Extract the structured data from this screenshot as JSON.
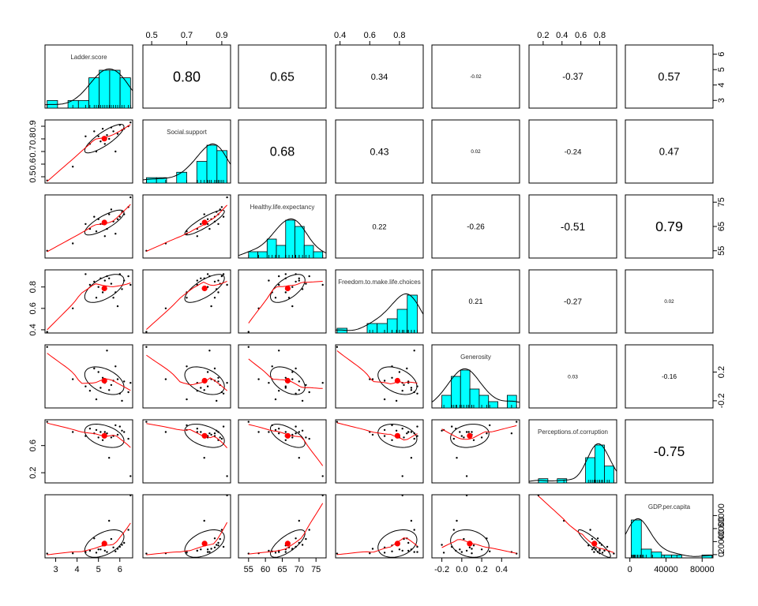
{
  "chart_data": {
    "type": "scatter-matrix",
    "variables": [
      "Ladder.score",
      "Social.support",
      "Healthy.life.expectancy",
      "Freedom.to.make.life.choices",
      "Generosity",
      "Perceptions.of.corruption",
      "GDP.per.capita"
    ],
    "ranges": [
      [
        2.5,
        6.6
      ],
      [
        0.45,
        0.95
      ],
      [
        52,
        78
      ],
      [
        0.37,
        0.96
      ],
      [
        -0.3,
        0.58
      ],
      [
        0.05,
        0.98
      ],
      [
        -5000,
        92000
      ]
    ],
    "ticks": [
      {
        "values": [
          3,
          4,
          5,
          6
        ],
        "labels": [
          "3",
          "4",
          "5",
          "6"
        ]
      },
      {
        "values": [
          0.5,
          0.7,
          0.9
        ],
        "labels": [
          "0.5",
          "0.7",
          "0.9"
        ]
      },
      {
        "values": [
          55,
          60,
          65,
          70,
          75
        ],
        "labels": [
          "55",
          "60",
          "65",
          "70",
          "75"
        ]
      },
      {
        "values": [
          0.4,
          0.6,
          0.8
        ],
        "labels": [
          "0.4",
          "0.6",
          "0.8"
        ]
      },
      {
        "values": [
          -0.2,
          0.0,
          0.2,
          0.4
        ],
        "labels": [
          "-0.2",
          "0.0",
          "0.2",
          "0.4"
        ]
      },
      {
        "values": [
          0.2,
          0.4,
          0.6,
          0.8
        ],
        "labels": [
          "0.2",
          "0.4",
          "0.6",
          "0.8"
        ]
      },
      {
        "values": [
          0,
          40000,
          80000
        ],
        "labels": [
          "0",
          "40000",
          "80000"
        ]
      }
    ],
    "side_ticks": [
      {
        "values": [
          3,
          4,
          5,
          6
        ],
        "labels": [
          "3",
          "4",
          "5",
          "6"
        ]
      },
      {
        "values": [
          0.5,
          0.6,
          0.7,
          0.8,
          0.9
        ],
        "labels": [
          "0.5",
          "0.6",
          "0.7",
          "0.8",
          "0.9"
        ]
      },
      {
        "values": [
          55,
          65,
          75
        ],
        "labels": [
          "55",
          "65",
          "75"
        ]
      },
      {
        "values": [
          0.4,
          0.6,
          0.8
        ],
        "labels": [
          "0.4",
          "0.6",
          "0.8"
        ]
      },
      {
        "values": [
          -0.2,
          0.2
        ],
        "labels": [
          "-0.2",
          "0.2"
        ]
      },
      {
        "values": [
          0.2,
          0.6
        ],
        "labels": [
          "0.2",
          "0.6"
        ]
      },
      {
        "values": [
          0,
          20000,
          40000,
          60000
        ],
        "labels": [
          "0",
          "20000",
          "40000",
          "60000"
        ]
      }
    ],
    "correlations": [
      {
        "row": 0,
        "col": 1,
        "value": "0.80"
      },
      {
        "row": 0,
        "col": 2,
        "value": "0.65"
      },
      {
        "row": 0,
        "col": 3,
        "value": "0.34"
      },
      {
        "row": 0,
        "col": 4,
        "value": "-0.02"
      },
      {
        "row": 0,
        "col": 5,
        "value": "-0.37"
      },
      {
        "row": 0,
        "col": 6,
        "value": "0.57"
      },
      {
        "row": 1,
        "col": 2,
        "value": "0.68"
      },
      {
        "row": 1,
        "col": 3,
        "value": "0.43"
      },
      {
        "row": 1,
        "col": 4,
        "value": "0.02"
      },
      {
        "row": 1,
        "col": 5,
        "value": "-0.24"
      },
      {
        "row": 1,
        "col": 6,
        "value": "0.47"
      },
      {
        "row": 2,
        "col": 3,
        "value": "0.22"
      },
      {
        "row": 2,
        "col": 4,
        "value": "-0.26"
      },
      {
        "row": 2,
        "col": 5,
        "value": "-0.51"
      },
      {
        "row": 2,
        "col": 6,
        "value": "0.79"
      },
      {
        "row": 3,
        "col": 4,
        "value": "0.21"
      },
      {
        "row": 3,
        "col": 5,
        "value": "-0.27"
      },
      {
        "row": 3,
        "col": 6,
        "value": "0.02"
      },
      {
        "row": 4,
        "col": 5,
        "value": "0.03"
      },
      {
        "row": 4,
        "col": 6,
        "value": "-0.16"
      },
      {
        "row": 5,
        "col": 6,
        "value": "-0.75"
      }
    ],
    "observations": [
      [
        6.5,
        0.93,
        77,
        0.82,
        0.05,
        0.15,
        91000
      ],
      [
        6.4,
        0.9,
        73,
        0.9,
        -0.08,
        0.7,
        38000
      ],
      [
        6.2,
        0.88,
        70,
        0.86,
        0.07,
        0.8,
        18000
      ],
      [
        6.1,
        0.87,
        71,
        0.78,
        -0.2,
        0.82,
        15000
      ],
      [
        6.0,
        0.91,
        69,
        0.92,
        -0.1,
        0.88,
        12000
      ],
      [
        5.9,
        0.84,
        68,
        0.62,
        0.1,
        0.76,
        9000
      ],
      [
        5.8,
        0.7,
        62,
        0.75,
        0.28,
        0.9,
        5000
      ],
      [
        5.7,
        0.86,
        67,
        0.7,
        0.08,
        0.74,
        11000
      ],
      [
        5.6,
        0.89,
        72,
        0.83,
        0.02,
        0.72,
        24000
      ],
      [
        5.5,
        0.8,
        70,
        0.88,
        -0.05,
        0.42,
        52000
      ],
      [
        5.4,
        0.83,
        64,
        0.9,
        0.5,
        0.78,
        4000
      ],
      [
        5.3,
        0.76,
        61,
        0.86,
        0.05,
        0.8,
        6000
      ],
      [
        5.2,
        0.88,
        66,
        0.75,
        0.12,
        0.68,
        14000
      ],
      [
        5.1,
        0.78,
        66,
        0.88,
        -0.02,
        0.8,
        8000
      ],
      [
        5.0,
        0.82,
        68,
        0.8,
        0.2,
        0.72,
        8000
      ],
      [
        4.9,
        0.7,
        63,
        0.7,
        -0.18,
        0.83,
        3000
      ],
      [
        4.8,
        0.86,
        69,
        0.85,
        0.25,
        0.78,
        25000
      ],
      [
        4.6,
        0.76,
        64,
        0.82,
        -0.06,
        0.85,
        6000
      ],
      [
        4.4,
        0.82,
        66,
        0.92,
        0.0,
        0.74,
        4000
      ],
      [
        3.8,
        0.58,
        58,
        0.6,
        0.1,
        0.8,
        2000
      ],
      [
        2.6,
        0.47,
        55,
        0.38,
        0.55,
        0.95,
        1500
      ]
    ]
  }
}
